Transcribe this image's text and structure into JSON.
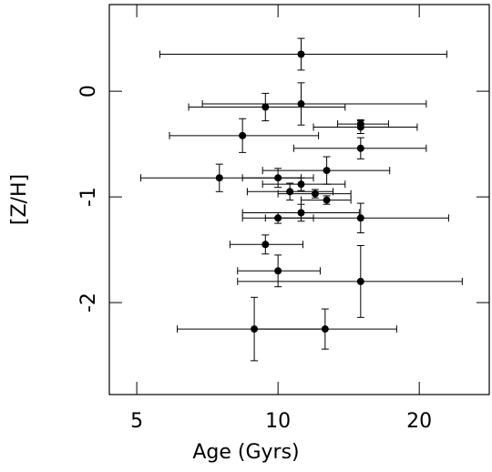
{
  "chart_data": {
    "type": "scatter",
    "xlabel": "Age (Gyrs)",
    "ylabel": "[Z/H]",
    "log_x": true,
    "color": "#000000",
    "xlim": [
      4.37,
      28.2
    ],
    "ylim": [
      -2.87,
      0.82
    ],
    "xticks": [
      5,
      10,
      20
    ],
    "yticks": [
      -2,
      -1,
      0
    ],
    "x": [
      11.2,
      11.2,
      9.4,
      15.0,
      15.0,
      8.4,
      15.0,
      12.7,
      7.5,
      10,
      11.2,
      10.6,
      12.0,
      12.7,
      11.2,
      10,
      15.0,
      9.4,
      10,
      15.0,
      8.9,
      12.6
    ],
    "values": [
      0.35,
      -0.12,
      -0.15,
      -0.31,
      -0.34,
      -0.42,
      -0.54,
      -0.75,
      -0.82,
      -0.82,
      -0.88,
      -0.95,
      -0.97,
      -1.03,
      -1.15,
      -1.2,
      -1.2,
      -1.45,
      -1.7,
      -1.8,
      -2.25,
      -2.25
    ],
    "x_low": [
      5.6,
      6.9,
      6.45,
      13.4,
      11.9,
      5.87,
      10.8,
      9.27,
      5.1,
      8.4,
      9.27,
      8.6,
      10,
      11.2,
      8.4,
      9.4,
      8.4,
      7.9,
      8.2,
      8.2,
      6.1,
      8.9
    ],
    "x_high": [
      22.9,
      20.7,
      13.9,
      17.2,
      19.8,
      12.2,
      20.7,
      17.3,
      11.2,
      11.9,
      13.9,
      13.1,
      14.3,
      14.3,
      14.9,
      11.9,
      23.1,
      11.3,
      12.3,
      24.7,
      12.6,
      17.9
    ],
    "yerr": [
      0.15,
      0.2,
      0.13,
      0.04,
      0.06,
      0.16,
      0.1,
      0.13,
      0.13,
      0.09,
      0.06,
      0.08,
      0.04,
      0.04,
      0.08,
      0.05,
      0.14,
      0.09,
      0.15,
      0.34,
      0.3,
      0.19
    ]
  }
}
